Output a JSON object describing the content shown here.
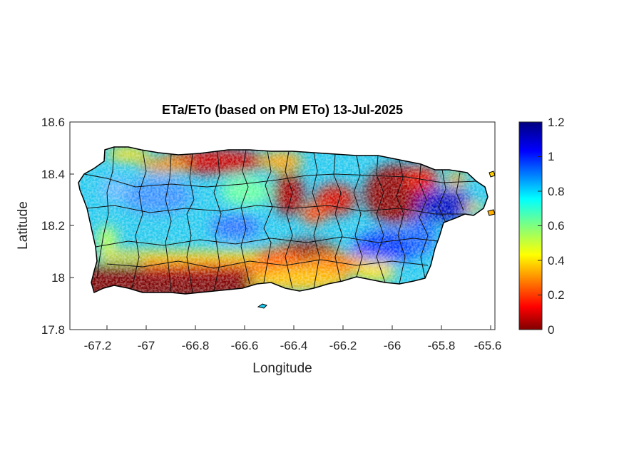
{
  "title": "ETa/ETo (based on PM ETo) 13-Jul-2025",
  "xlabel": "Longitude",
  "ylabel": "Latitude",
  "x_ticks": [
    "-67.2",
    "-67",
    "-66.8",
    "-66.6",
    "-66.4",
    "-66.2",
    "-66",
    "-65.8",
    "-65.6"
  ],
  "y_ticks": [
    "18.6",
    "18.4",
    "18.2",
    "18",
    "17.8"
  ],
  "colorbar_ticks": [
    "1.2",
    "1",
    "0.8",
    "0.6",
    "0.4",
    "0.2",
    "0"
  ],
  "chart_data": {
    "type": "heatmap",
    "title": "ETa/ETo (based on PM ETo) 13-Jul-2025",
    "xlabel": "Longitude",
    "ylabel": "Latitude",
    "xlim": [
      -67.3,
      -65.58
    ],
    "ylim": [
      17.8,
      18.6
    ],
    "x_tick_values": [
      -67.2,
      -67,
      -66.8,
      -66.6,
      -66.4,
      -66.2,
      -66,
      -65.8,
      -65.6
    ],
    "y_tick_values": [
      18.6,
      18.4,
      18.2,
      18,
      17.8
    ],
    "colorbar": {
      "min": 0,
      "max": 1.2,
      "colormap": "jet",
      "ticks": [
        0,
        0.2,
        0.4,
        0.6,
        0.8,
        1,
        1.2
      ]
    },
    "grid": false
  }
}
